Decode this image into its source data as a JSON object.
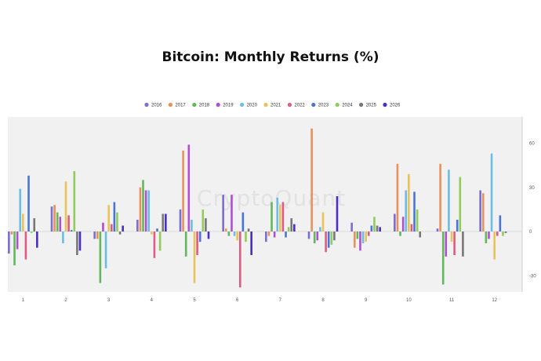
{
  "watermark": "CryptoQuant",
  "chart_data": {
    "type": "bar",
    "title": "Bitcoin: Monthly Returns (%)",
    "xlabel": "",
    "ylabel": "",
    "categories": [
      "1",
      "2",
      "3",
      "4",
      "5",
      "6",
      "7",
      "8",
      "9",
      "10",
      "11",
      "12"
    ],
    "ylim": [
      -65,
      65
    ],
    "yticks": [
      60,
      30,
      0,
      -30
    ],
    "grid": false,
    "legend": "top",
    "series": [
      {
        "name": "2016",
        "color": "#7a6fd0",
        "values": [
          -15,
          17,
          -5,
          8,
          15,
          25,
          -7,
          -5,
          6,
          12,
          2,
          28
        ]
      },
      {
        "name": "2017",
        "color": "#e8915a",
        "values": [
          -2,
          18,
          -5,
          30,
          55,
          2,
          -3,
          70,
          -11,
          46,
          46,
          26
        ]
      },
      {
        "name": "2018",
        "color": "#62b85a",
        "values": [
          -23,
          13,
          -35,
          35,
          -17,
          -3,
          20,
          -8,
          -5,
          -3,
          -36,
          -8
        ]
      },
      {
        "name": "2019",
        "color": "#b04fd0",
        "values": [
          -12,
          10,
          6,
          28,
          59,
          25,
          -4,
          -6,
          -13,
          10,
          -17,
          -5
        ]
      },
      {
        "name": "2020",
        "color": "#6bbde3",
        "values": [
          29,
          -8,
          -25,
          28,
          8,
          -3,
          23,
          3,
          -8,
          28,
          42,
          53
        ]
      },
      {
        "name": "2021",
        "color": "#e8c35a",
        "values": [
          12,
          34,
          18,
          -2,
          -35,
          -6,
          18,
          13,
          -7,
          39,
          -7,
          -19
        ]
      },
      {
        "name": "2022",
        "color": "#dc5c82",
        "values": [
          -19,
          11,
          5,
          -18,
          -16,
          -38,
          20,
          -14,
          -3,
          5,
          -16,
          -3
        ]
      },
      {
        "name": "2023",
        "color": "#4a74d6",
        "values": [
          38,
          1,
          20,
          2,
          -7,
          13,
          -4,
          -11,
          4,
          27,
          8,
          11
        ]
      },
      {
        "name": "2024",
        "color": "#8fcc5c",
        "values": [
          -1,
          41,
          13,
          -13,
          15,
          -7,
          3,
          -9,
          10,
          15,
          37,
          -3
        ]
      },
      {
        "name": "2025",
        "color": "#777777",
        "values": [
          9,
          -16,
          -2,
          12,
          9,
          2,
          9,
          -6,
          4,
          -4,
          -17,
          -1
        ]
      },
      {
        "name": "2026",
        "color": "#4b2fc2",
        "values": [
          -11,
          -13,
          4,
          12,
          -5,
          -16,
          5,
          24,
          3,
          0,
          0,
          0
        ]
      }
    ]
  }
}
